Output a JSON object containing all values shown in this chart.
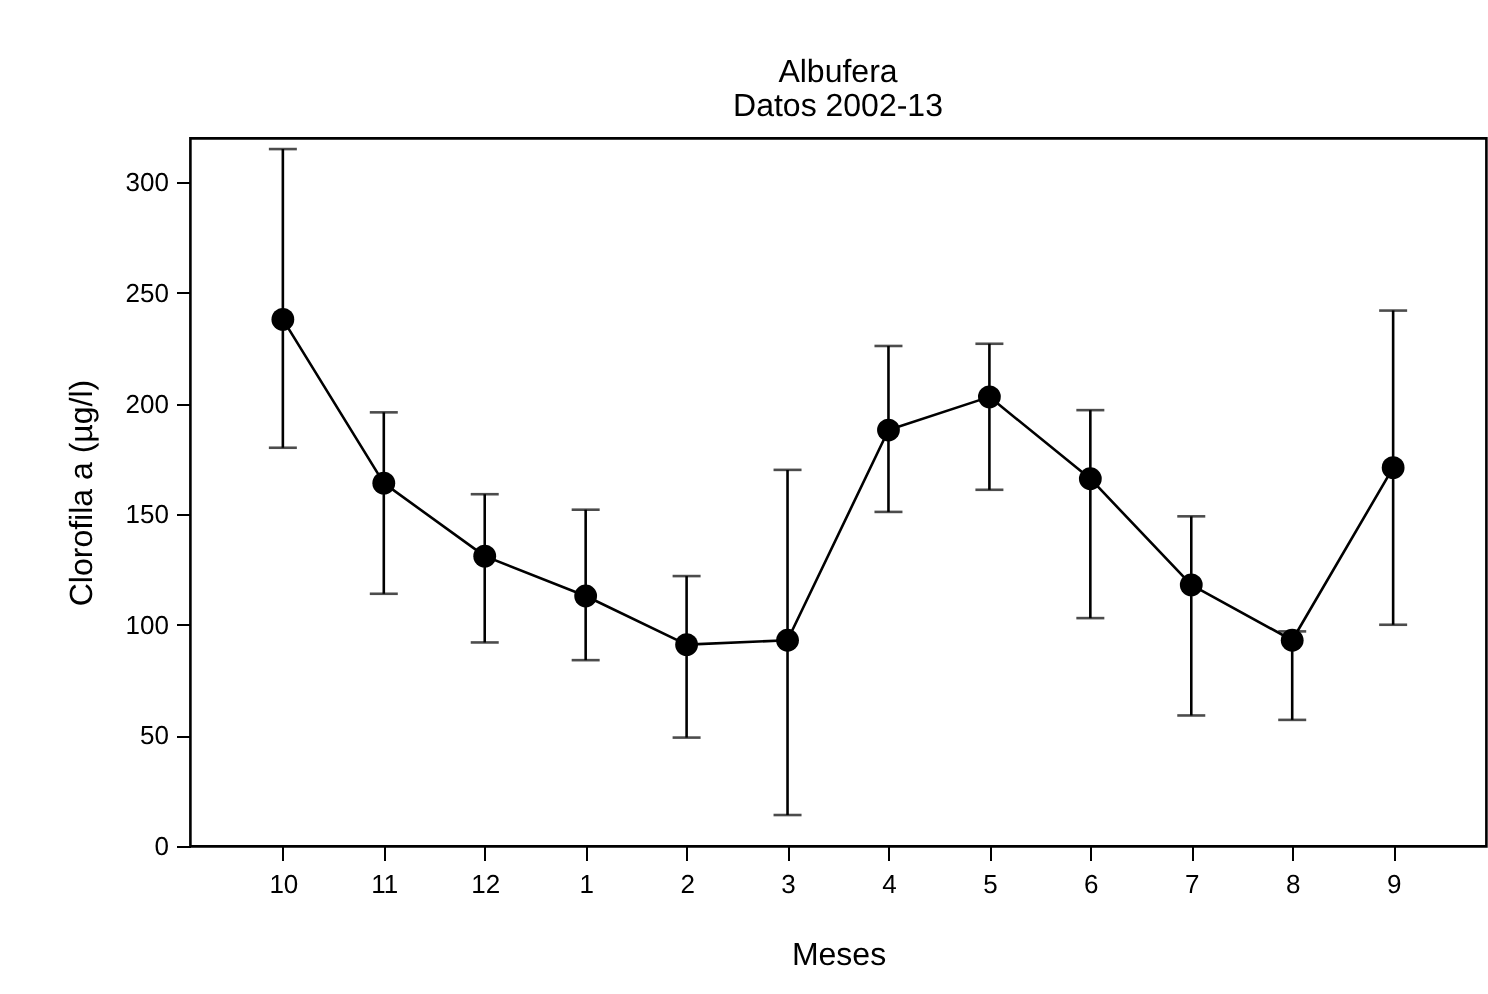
{
  "chart_data": {
    "type": "line",
    "title": "Albufera",
    "subtitle": "Datos 2002-13",
    "xlabel": "Meses",
    "ylabel": "Clorofila a (µg/l)",
    "categories": [
      "10",
      "11",
      "12",
      "1",
      "2",
      "3",
      "4",
      "5",
      "6",
      "7",
      "8",
      "9"
    ],
    "series": [
      {
        "color": "#000000",
        "values": [
          238,
          164,
          131,
          113,
          91,
          93,
          188,
          203,
          166,
          118,
          93,
          171
        ],
        "errors": [
          [
            180,
            315
          ],
          [
            114,
            196
          ],
          [
            92,
            159
          ],
          [
            84,
            152
          ],
          [
            49,
            122
          ],
          [
            14,
            170
          ],
          [
            151,
            226
          ],
          [
            161,
            227
          ],
          [
            103,
            197
          ],
          [
            59,
            149
          ],
          [
            57,
            97
          ],
          [
            100,
            242
          ]
        ]
      }
    ],
    "ylim": [
      0,
      320
    ],
    "yticks": [
      0,
      50,
      100,
      150,
      200,
      250,
      300
    ],
    "marker": "circle",
    "line_style": "solid",
    "grid": false
  }
}
